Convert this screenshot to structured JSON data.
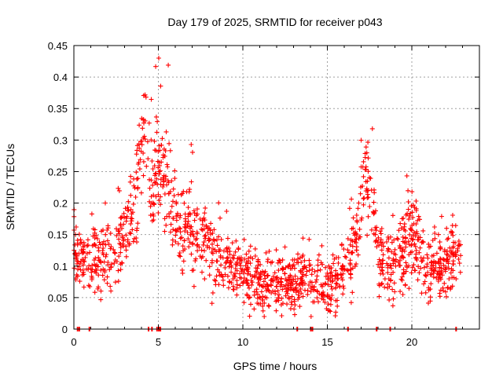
{
  "chart_data": {
    "type": "scatter",
    "title": "Day 179 of 2025, SRMTID for receiver p043",
    "xlabel": "GPS time / hours",
    "ylabel": "SRMTID / TECUs",
    "xlim": [
      0,
      24
    ],
    "ylim": [
      0,
      0.45
    ],
    "xticks": [
      0,
      5,
      10,
      15,
      20
    ],
    "xtick_labels": [
      "0",
      "5",
      "10",
      "15",
      "20"
    ],
    "yticks": [
      0,
      0.05,
      0.1,
      0.15,
      0.2,
      0.25,
      0.3,
      0.35,
      0.4,
      0.45
    ],
    "ytick_labels": [
      "0",
      "0.05",
      "0.1",
      "0.15",
      "0.2",
      "0.25",
      "0.3",
      "0.35",
      "0.4",
      "0.45"
    ],
    "grid": true,
    "marker": "+",
    "color": "#ff0000",
    "trend": [
      {
        "x": 0.0,
        "y": 0.13
      },
      {
        "x": 0.5,
        "y": 0.11
      },
      {
        "x": 1.0,
        "y": 0.105
      },
      {
        "x": 1.5,
        "y": 0.11
      },
      {
        "x": 2.0,
        "y": 0.115
      },
      {
        "x": 2.5,
        "y": 0.12
      },
      {
        "x": 3.0,
        "y": 0.14
      },
      {
        "x": 3.5,
        "y": 0.19
      },
      {
        "x": 4.0,
        "y": 0.28
      },
      {
        "x": 4.3,
        "y": 0.33
      },
      {
        "x": 4.6,
        "y": 0.2
      },
      {
        "x": 5.0,
        "y": 0.27
      },
      {
        "x": 5.5,
        "y": 0.25
      },
      {
        "x": 6.0,
        "y": 0.18
      },
      {
        "x": 6.5,
        "y": 0.16
      },
      {
        "x": 7.0,
        "y": 0.16
      },
      {
        "x": 7.5,
        "y": 0.15
      },
      {
        "x": 8.0,
        "y": 0.13
      },
      {
        "x": 8.5,
        "y": 0.11
      },
      {
        "x": 9.0,
        "y": 0.11
      },
      {
        "x": 9.5,
        "y": 0.1
      },
      {
        "x": 10.0,
        "y": 0.085
      },
      {
        "x": 10.5,
        "y": 0.08
      },
      {
        "x": 11.0,
        "y": 0.07
      },
      {
        "x": 11.5,
        "y": 0.07
      },
      {
        "x": 12.0,
        "y": 0.07
      },
      {
        "x": 12.5,
        "y": 0.075
      },
      {
        "x": 13.0,
        "y": 0.08
      },
      {
        "x": 13.5,
        "y": 0.085
      },
      {
        "x": 14.0,
        "y": 0.08
      },
      {
        "x": 14.5,
        "y": 0.07
      },
      {
        "x": 15.0,
        "y": 0.07
      },
      {
        "x": 15.5,
        "y": 0.075
      },
      {
        "x": 16.0,
        "y": 0.09
      },
      {
        "x": 16.5,
        "y": 0.12
      },
      {
        "x": 17.0,
        "y": 0.19
      },
      {
        "x": 17.3,
        "y": 0.24
      },
      {
        "x": 17.7,
        "y": 0.2
      },
      {
        "x": 18.0,
        "y": 0.13
      },
      {
        "x": 18.5,
        "y": 0.1
      },
      {
        "x": 19.0,
        "y": 0.1
      },
      {
        "x": 19.5,
        "y": 0.12
      },
      {
        "x": 20.0,
        "y": 0.16
      },
      {
        "x": 20.4,
        "y": 0.14
      },
      {
        "x": 21.0,
        "y": 0.09
      },
      {
        "x": 21.5,
        "y": 0.095
      },
      {
        "x": 22.0,
        "y": 0.1
      },
      {
        "x": 22.5,
        "y": 0.12
      },
      {
        "x": 22.9,
        "y": 0.12
      }
    ],
    "spread": 0.03,
    "x_range": [
      0,
      22.9
    ],
    "point_count": 1500,
    "zero_markers": [
      0.2,
      0.3,
      0.9,
      4.4,
      4.6,
      4.9,
      5.0,
      5.1,
      13.2,
      14.0,
      14.1,
      16.2,
      17.9,
      18.7,
      22.6
    ]
  }
}
